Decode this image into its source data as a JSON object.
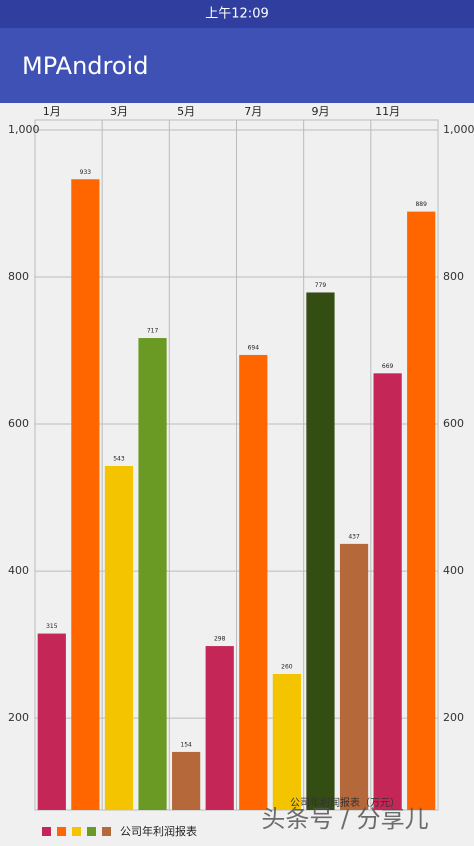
{
  "status_bar": {
    "time": "上午12:09"
  },
  "app_bar": {
    "title": "MPAndroid"
  },
  "watermark": "头条号 / 分享儿",
  "chart_data": {
    "type": "bar",
    "description": "公司年利润报表（万元）",
    "categories": [
      "1月",
      null,
      "3月",
      null,
      "5月",
      null,
      "7月",
      null,
      "9月",
      null,
      "11月",
      null
    ],
    "values": [
      315,
      933,
      543,
      717,
      154,
      298,
      694,
      260,
      779,
      437,
      669,
      889
    ],
    "colors": [
      "#c42757",
      "#ff6600",
      "#f5c400",
      "#6a9a24",
      "#b5683a",
      "#c42757",
      "#ff6600",
      "#f5c400",
      "#344d12",
      "#b5683a",
      "#c42757",
      "#ff6600"
    ],
    "ylim": [
      75,
      1000
    ],
    "yticks": [
      200,
      400,
      600,
      800,
      {
        "value": 1000,
        "label": "1,000"
      }
    ],
    "grid": true,
    "legend": {
      "label": "公司年利润报表",
      "colors": [
        "#c42757",
        "#ff6600",
        "#f5c400",
        "#6a9a24",
        "#b5683a"
      ],
      "position": "bottom-left"
    }
  }
}
